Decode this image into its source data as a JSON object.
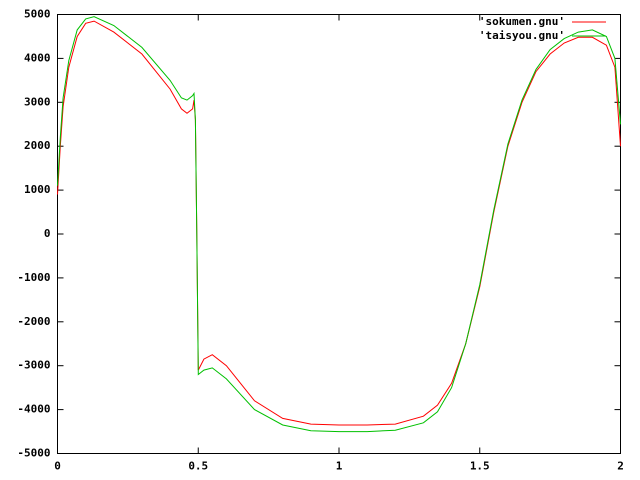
{
  "chart_data": {
    "type": "line",
    "x": [
      0,
      0.01,
      0.02,
      0.04,
      0.07,
      0.1,
      0.13,
      0.2,
      0.3,
      0.4,
      0.44,
      0.46,
      0.48,
      0.485,
      0.49,
      0.495,
      0.5,
      0.52,
      0.55,
      0.6,
      0.7,
      0.8,
      0.9,
      1.0,
      1.1,
      1.2,
      1.3,
      1.35,
      1.4,
      1.45,
      1.5,
      1.55,
      1.6,
      1.65,
      1.7,
      1.75,
      1.8,
      1.85,
      1.9,
      1.95,
      1.98,
      2.0
    ],
    "series": [
      {
        "name": "'sokumen.gnu'",
        "color": "#ff0000",
        "values": [
          900,
          2000,
          2900,
          3800,
          4500,
          4800,
          4850,
          4600,
          4100,
          3300,
          2850,
          2750,
          2850,
          3050,
          2600,
          0,
          -3100,
          -2850,
          -2750,
          -3000,
          -3800,
          -4200,
          -4330,
          -4350,
          -4350,
          -4330,
          -4150,
          -3900,
          -3400,
          -2500,
          -1200,
          500,
          2000,
          3000,
          3700,
          4100,
          4350,
          4480,
          4480,
          4300,
          3800,
          2000
        ]
      },
      {
        "name": "'taisyou.gnu'",
        "color": "#00c000",
        "values": [
          1100,
          2200,
          3100,
          3950,
          4650,
          4900,
          4950,
          4750,
          4250,
          3500,
          3100,
          3050,
          3150,
          3200,
          2600,
          0,
          -3200,
          -3100,
          -3050,
          -3300,
          -4000,
          -4350,
          -4480,
          -4500,
          -4500,
          -4470,
          -4300,
          -4050,
          -3500,
          -2500,
          -1150,
          550,
          2050,
          3050,
          3750,
          4200,
          4450,
          4600,
          4650,
          4500,
          4000,
          2500
        ]
      }
    ],
    "xlim": [
      0,
      2
    ],
    "xticks": [
      0,
      0.5,
      1,
      1.5,
      2
    ],
    "ylim": [
      -5000,
      5000
    ],
    "yticks": [
      -5000,
      -4000,
      -3000,
      -2000,
      -1000,
      0,
      1000,
      2000,
      3000,
      4000,
      5000
    ],
    "legend": "top-right"
  }
}
